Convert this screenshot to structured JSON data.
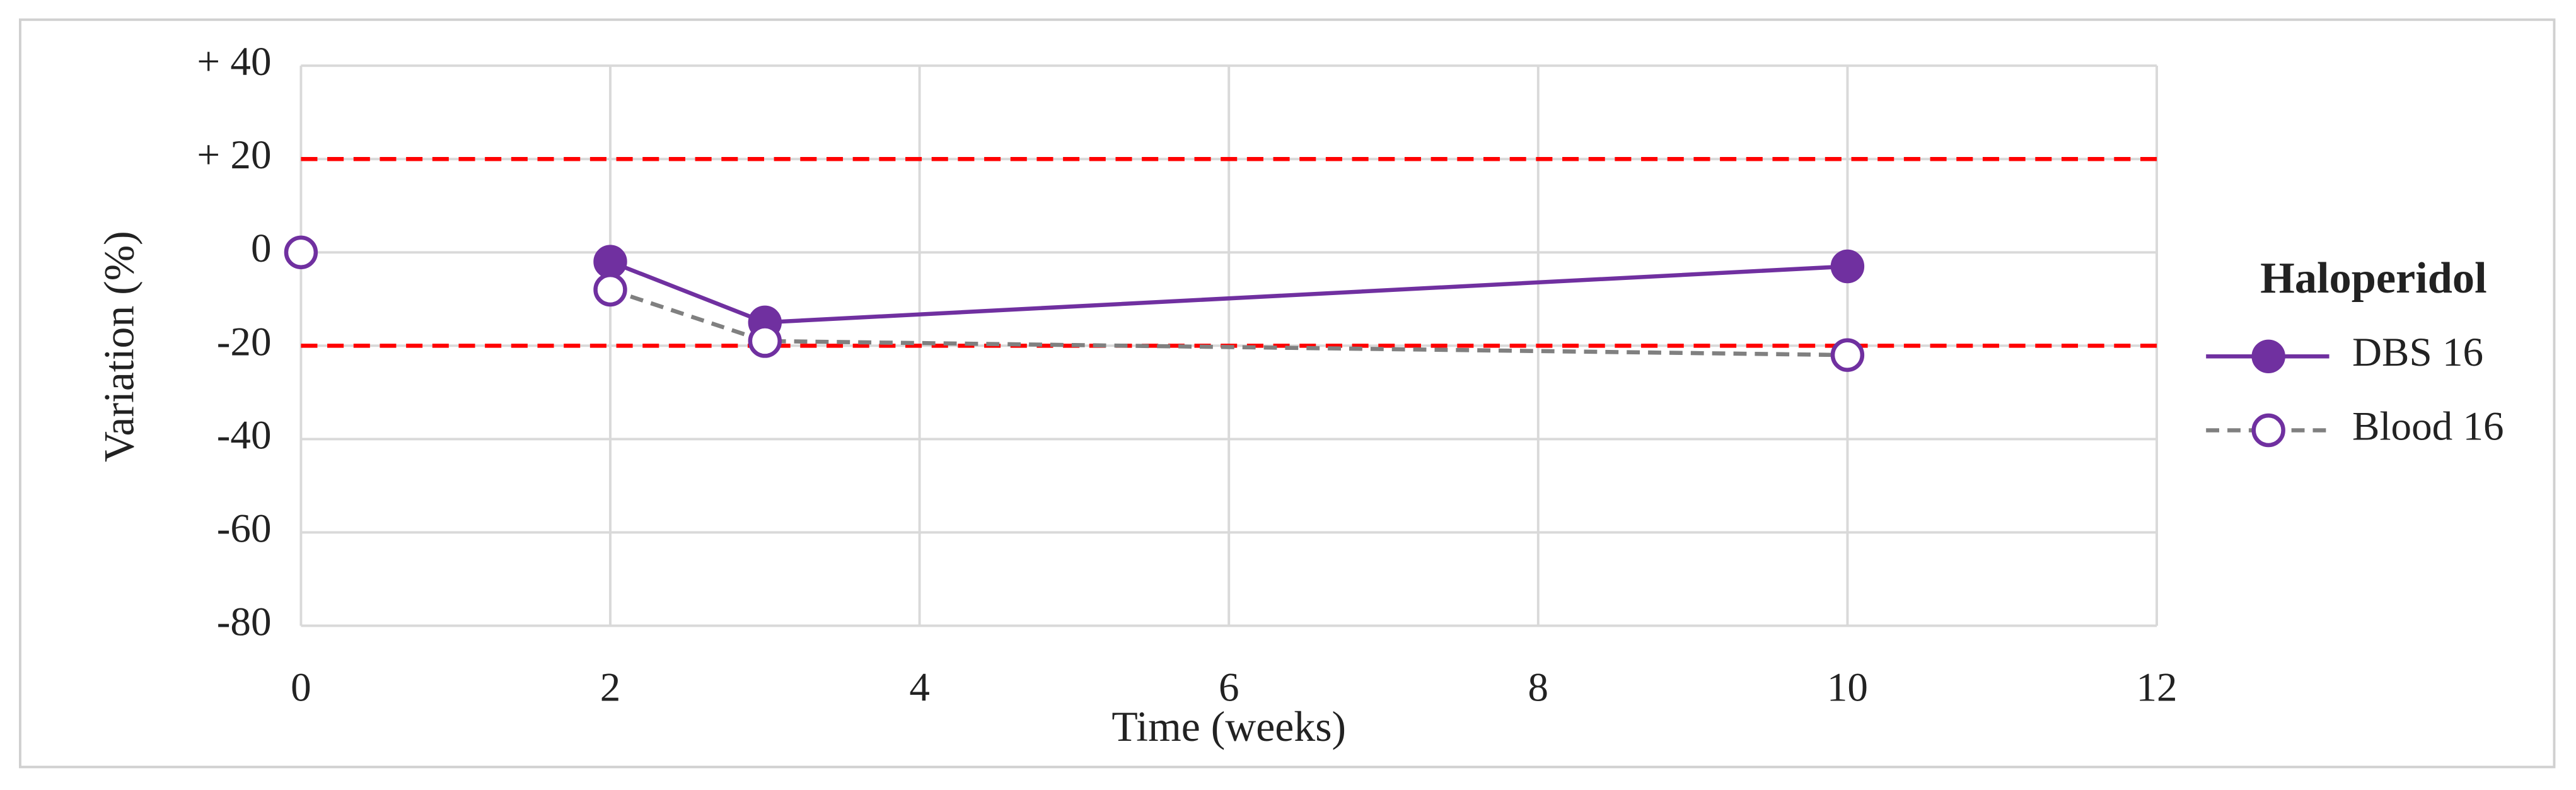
{
  "chart_data": {
    "type": "line",
    "x_label": "Time (weeks)",
    "y_label": "Variation (%)",
    "legend_title": "Haloperidol",
    "legend_position": "right",
    "xlim": [
      0,
      12
    ],
    "xticks": [
      0,
      2,
      4,
      6,
      8,
      10,
      12
    ],
    "ylim": [
      -80,
      40
    ],
    "yticks": [
      -80,
      -60,
      -40,
      -20,
      0,
      {
        "value": 20,
        "label": "+ 20"
      },
      {
        "value": 40,
        "label": "+ 40"
      }
    ],
    "grid": true,
    "reference_lines": [
      {
        "value": 20,
        "color": "#ff0000"
      },
      {
        "value": -20,
        "color": "#ff0000"
      }
    ],
    "series": [
      {
        "name": "DBS 16",
        "color": "#7030a0",
        "line_style": "solid",
        "marker": "filled",
        "x": [
          2,
          3,
          10
        ],
        "values": [
          -2,
          -15,
          -3
        ]
      },
      {
        "name": "Blood 16",
        "color": "#808080",
        "marker_color": "#7030a0",
        "line_style": "dashed",
        "marker": "open",
        "x": [
          0,
          null,
          2,
          3,
          10
        ],
        "values": [
          0,
          null,
          -8,
          -19,
          -22
        ]
      }
    ]
  }
}
